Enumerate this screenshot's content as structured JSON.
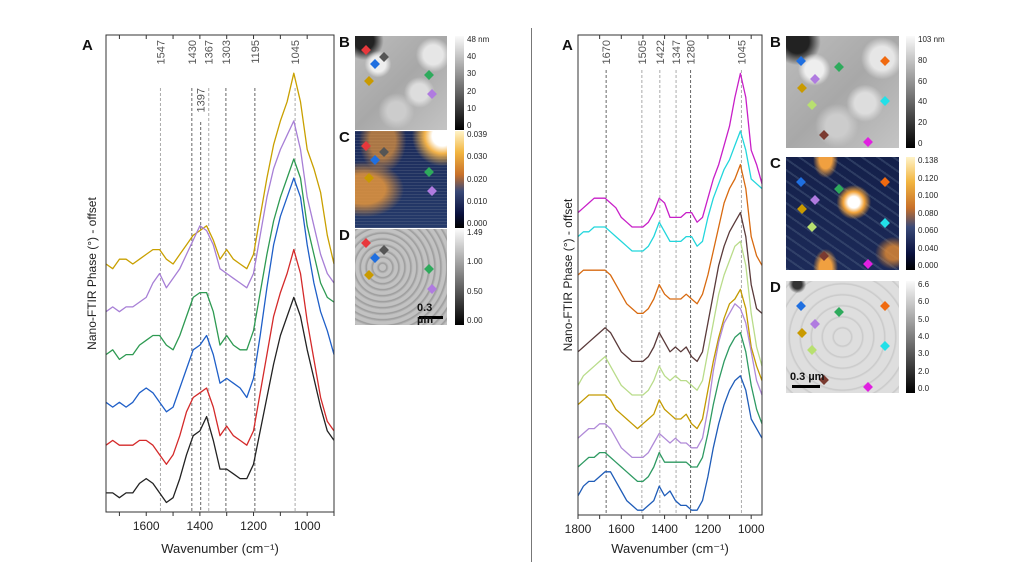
{
  "chart_data": [
    {
      "type": "line",
      "panel_label": "A",
      "xlabel": "Wavenumber (cm⁻¹)",
      "ylabel": "Nano-FTIR Phase (°) - offset",
      "xlim": [
        1750,
        900
      ],
      "x_reversed": true,
      "ylim": [
        0,
        100
      ],
      "ytick_labels": false,
      "xticks": [
        1600,
        1400,
        1200,
        1000
      ],
      "xticks_minor": [
        1700,
        1500,
        1300,
        1100,
        900
      ],
      "grid": false,
      "reference_lines": [
        {
          "label": "1547",
          "x": 1547,
          "style": "light"
        },
        {
          "label": "1430",
          "x": 1430,
          "style": "dark"
        },
        {
          "label": "1397",
          "x": 1397,
          "style": "dark"
        },
        {
          "label": "1367",
          "x": 1367,
          "style": "light"
        },
        {
          "label": "1303",
          "x": 1303,
          "style": "dark"
        },
        {
          "label": "1195",
          "x": 1195,
          "style": "dark"
        },
        {
          "label": "1045",
          "x": 1045,
          "style": "light"
        }
      ],
      "x": [
        1750,
        1725,
        1700,
        1675,
        1650,
        1625,
        1600,
        1575,
        1550,
        1525,
        1500,
        1475,
        1450,
        1425,
        1400,
        1375,
        1350,
        1325,
        1300,
        1275,
        1250,
        1225,
        1200,
        1175,
        1150,
        1125,
        1100,
        1075,
        1050,
        1025,
        1000,
        975,
        950,
        925,
        900
      ],
      "series": [
        {
          "color": "#c9a000",
          "values": [
            52,
            51,
            53,
            53,
            52,
            53,
            54,
            55,
            55,
            53,
            52,
            54,
            56,
            58,
            59,
            60,
            57,
            53,
            55,
            53,
            52,
            51,
            54,
            62,
            70,
            77,
            82,
            86,
            92,
            86,
            76,
            72,
            67,
            58,
            52
          ]
        },
        {
          "color": "#a77fd6",
          "values": [
            42,
            43,
            42,
            43,
            43,
            44,
            45,
            48,
            50,
            47,
            49,
            51,
            54,
            57,
            60,
            59,
            56,
            51,
            50,
            49,
            48,
            47,
            50,
            58,
            66,
            72,
            76,
            79,
            82,
            76,
            66,
            60,
            54,
            50,
            48
          ]
        },
        {
          "color": "#2e9a52",
          "values": [
            33,
            34,
            32,
            33,
            33,
            35,
            36,
            37,
            37,
            35,
            34,
            37,
            41,
            45,
            46,
            46,
            42,
            35,
            37,
            35,
            34,
            34,
            38,
            46,
            54,
            61,
            66,
            70,
            74,
            70,
            60,
            54,
            48,
            45,
            44
          ]
        },
        {
          "color": "#1f5fc8",
          "values": [
            23,
            22,
            23,
            22,
            23,
            25,
            26,
            25,
            23,
            21,
            22,
            26,
            30,
            34,
            35,
            37,
            33,
            27,
            28,
            27,
            26,
            24,
            28,
            37,
            47,
            56,
            62,
            66,
            70,
            66,
            56,
            48,
            42,
            38,
            33
          ]
        },
        {
          "color": "#d42a2a",
          "values": [
            14,
            15,
            14,
            14,
            14,
            15,
            15,
            14,
            12,
            10,
            12,
            16,
            21,
            24,
            25,
            26,
            22,
            16,
            18,
            16,
            15,
            14,
            17,
            25,
            33,
            41,
            46,
            50,
            55,
            50,
            40,
            32,
            24,
            19,
            17
          ]
        },
        {
          "color": "#222222",
          "values": [
            4,
            4,
            3,
            4,
            4,
            6,
            7,
            6,
            4,
            2,
            3,
            7,
            12,
            16,
            17,
            20,
            15,
            9,
            9,
            8,
            7,
            7,
            10,
            17,
            24,
            31,
            37,
            41,
            45,
            41,
            34,
            28,
            22,
            17,
            15
          ]
        }
      ]
    },
    {
      "type": "line",
      "panel_label": "A",
      "xlabel": "Wavenumber (cm⁻¹)",
      "ylabel": "Nano-FTIR Phase (°) - offset",
      "xlim": [
        1800,
        950
      ],
      "x_reversed": true,
      "ylim": [
        0,
        100
      ],
      "ytick_labels": false,
      "xticks": [
        1800,
        1600,
        1400,
        1200,
        1000
      ],
      "xticks_minor": [
        1700,
        1500,
        1300,
        1100
      ],
      "grid": false,
      "reference_lines": [
        {
          "label": "1670",
          "x": 1670,
          "style": "dark"
        },
        {
          "label": "1505",
          "x": 1505,
          "style": "light"
        },
        {
          "label": "1422",
          "x": 1422,
          "style": "light"
        },
        {
          "label": "1347",
          "x": 1347,
          "style": "light"
        },
        {
          "label": "1280",
          "x": 1280,
          "style": "dark"
        },
        {
          "label": "1045",
          "x": 1045,
          "style": "light"
        }
      ],
      "x": [
        1800,
        1775,
        1750,
        1725,
        1700,
        1675,
        1650,
        1625,
        1600,
        1575,
        1550,
        1525,
        1500,
        1475,
        1450,
        1425,
        1400,
        1375,
        1350,
        1325,
        1300,
        1275,
        1250,
        1225,
        1200,
        1175,
        1150,
        1125,
        1100,
        1075,
        1050,
        1025,
        1000,
        975,
        950
      ],
      "series": [
        {
          "color": "#c81fc8",
          "values": [
            63,
            64,
            65,
            66,
            66,
            66,
            65,
            64,
            62,
            61,
            60,
            60,
            60,
            61,
            63,
            66,
            65,
            62,
            62,
            62,
            63,
            63,
            61,
            62,
            66,
            70,
            73,
            77,
            81,
            87,
            92,
            87,
            76,
            73,
            69
          ]
        },
        {
          "color": "#22d6dc",
          "values": [
            58,
            59,
            59,
            60,
            60,
            60,
            59,
            58,
            57,
            56,
            55,
            55,
            55,
            56,
            58,
            61,
            59,
            57,
            57,
            57,
            58,
            58,
            56,
            57,
            62,
            66,
            69,
            72,
            74,
            77,
            80,
            76,
            70,
            69,
            68
          ]
        },
        {
          "color": "#d86a10",
          "values": [
            50,
            51,
            51,
            51,
            51,
            51,
            50,
            48,
            46,
            44,
            43,
            42,
            42,
            43,
            45,
            48,
            46,
            45,
            45,
            45,
            46,
            45,
            44,
            46,
            50,
            55,
            60,
            65,
            68,
            70,
            73,
            68,
            58,
            54,
            52
          ]
        },
        {
          "color": "#5a3a3a",
          "values": [
            34,
            35,
            36,
            37,
            38,
            39,
            38,
            36,
            34,
            33,
            32,
            32,
            32,
            33,
            35,
            38,
            36,
            34,
            35,
            34,
            35,
            33,
            32,
            34,
            40,
            46,
            52,
            56,
            59,
            61,
            63,
            58,
            48,
            43,
            42
          ]
        },
        {
          "color": "#b9dc8a",
          "values": [
            27,
            29,
            30,
            31,
            32,
            33,
            31,
            29,
            27,
            26,
            25,
            25,
            25,
            26,
            28,
            31,
            29,
            28,
            29,
            28,
            28,
            27,
            26,
            28,
            34,
            40,
            46,
            50,
            53,
            56,
            57,
            52,
            42,
            35,
            31
          ]
        },
        {
          "color": "#c39a00",
          "values": [
            23,
            24,
            25,
            25,
            25,
            25,
            24,
            22,
            21,
            20,
            19,
            18,
            19,
            20,
            21,
            24,
            22,
            21,
            20,
            20,
            21,
            19,
            18,
            20,
            26,
            32,
            37,
            41,
            44,
            45,
            47,
            43,
            35,
            31,
            28
          ]
        },
        {
          "color": "#b08ad8",
          "values": [
            16,
            17,
            18,
            18,
            19,
            19,
            18,
            16,
            14,
            13,
            12,
            12,
            12,
            13,
            15,
            17,
            16,
            15,
            16,
            15,
            15,
            14,
            14,
            16,
            22,
            30,
            36,
            40,
            42,
            44,
            43,
            40,
            34,
            28,
            25
          ]
        },
        {
          "color": "#2e9a62",
          "values": [
            10,
            11,
            12,
            12,
            13,
            13,
            12,
            11,
            10,
            9,
            8,
            7,
            7,
            8,
            10,
            13,
            11,
            11,
            11,
            11,
            11,
            10,
            10,
            12,
            17,
            23,
            28,
            32,
            35,
            37,
            38,
            34,
            27,
            22,
            19
          ]
        },
        {
          "color": "#1f5cb8",
          "values": [
            4,
            6,
            7,
            7,
            8,
            9,
            9,
            7,
            5,
            3,
            2,
            1,
            1,
            2,
            3,
            6,
            4,
            5,
            3,
            2,
            2,
            1,
            1,
            3,
            8,
            14,
            19,
            23,
            26,
            28,
            29,
            26,
            20,
            18,
            16
          ]
        }
      ]
    }
  ],
  "left_maps": {
    "panels": [
      {
        "label": "B",
        "colorbar": "gray",
        "colorbar_labels": [
          "48 nm",
          "40",
          "30",
          "20",
          "10",
          "0"
        ]
      },
      {
        "label": "C",
        "colorbar": "navy-orange",
        "colorbar_labels": [
          "0.039",
          "0.030",
          "0.020",
          "0.010",
          "0.000"
        ]
      },
      {
        "label": "D",
        "colorbar": "gray",
        "colorbar_labels": [
          "1.49",
          "1.00",
          "0.50",
          "0.00"
        ]
      }
    ],
    "marker_colors": [
      "#e8383c",
      "#555555",
      "#1f6fe0",
      "#c99a00",
      "#2eaa5c",
      "#b07be0"
    ],
    "scale_bar": "0.3 µm"
  },
  "right_maps": {
    "panels": [
      {
        "label": "B",
        "colorbar": "gray",
        "colorbar_labels": [
          "103 nm",
          "80",
          "60",
          "40",
          "20",
          "0"
        ]
      },
      {
        "label": "C",
        "colorbar": "navy-orange",
        "colorbar_labels": [
          "0.138",
          "0.120",
          "0.100",
          "0.080",
          "0.060",
          "0.040",
          "0.000"
        ]
      },
      {
        "label": "D",
        "colorbar": "gray",
        "colorbar_labels": [
          "6.6",
          "6.0",
          "5.0",
          "4.0",
          "3.0",
          "2.0",
          "0.0"
        ]
      }
    ],
    "marker_colors": [
      "#1f6fe0",
      "#2eaa5c",
      "#f06a10",
      "#b07be0",
      "#c99a00",
      "#22e0e8",
      "#b8e070",
      "#7a3a30",
      "#e020e0"
    ],
    "scale_bar": "0.3 µm"
  }
}
